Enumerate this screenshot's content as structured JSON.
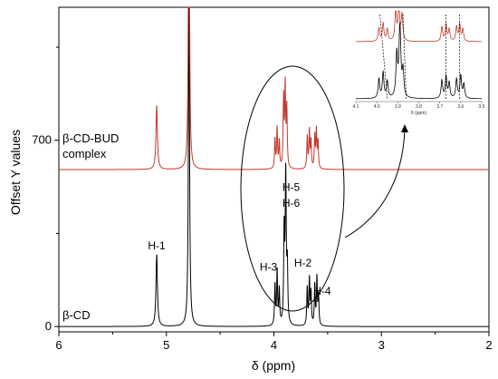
{
  "chart_data": {
    "type": "line",
    "xlabel": "δ (ppm)",
    "ylabel": "Offset Y values",
    "xlim": [
      6,
      2
    ],
    "ylim": [
      -20,
      1200
    ],
    "x_ticks": [
      "6",
      "5",
      "4",
      "3",
      "2"
    ],
    "y_ticks": [
      "0",
      "700"
    ],
    "grid": false,
    "series": [
      {
        "name": "β-CD",
        "offset": 0,
        "color": "#000000",
        "peaks": [
          {
            "x": 5.09,
            "y": 270,
            "w": 0.008
          },
          {
            "x": 4.79,
            "y": 1350,
            "w": 0.006
          },
          {
            "x": 3.99,
            "y": 150,
            "w": 0.005
          },
          {
            "x": 3.97,
            "y": 200,
            "w": 0.005
          },
          {
            "x": 3.95,
            "y": 130,
            "w": 0.005
          },
          {
            "x": 3.905,
            "y": 330,
            "w": 0.005
          },
          {
            "x": 3.89,
            "y": 560,
            "w": 0.006
          },
          {
            "x": 3.875,
            "y": 200,
            "w": 0.005
          },
          {
            "x": 3.69,
            "y": 140,
            "w": 0.005
          },
          {
            "x": 3.67,
            "y": 170,
            "w": 0.005
          },
          {
            "x": 3.655,
            "y": 120,
            "w": 0.005
          },
          {
            "x": 3.62,
            "y": 150,
            "w": 0.005
          },
          {
            "x": 3.6,
            "y": 175,
            "w": 0.005
          },
          {
            "x": 3.585,
            "y": 110,
            "w": 0.005
          }
        ]
      },
      {
        "name": "β-CD-BUD complex",
        "offset": 590,
        "color": "#c0392b",
        "peaks": [
          {
            "x": 5.09,
            "y": 240,
            "w": 0.008
          },
          {
            "x": 4.79,
            "y": 1300,
            "w": 0.006
          },
          {
            "x": 3.99,
            "y": 110,
            "w": 0.005
          },
          {
            "x": 3.97,
            "y": 150,
            "w": 0.005
          },
          {
            "x": 3.95,
            "y": 100,
            "w": 0.005
          },
          {
            "x": 3.91,
            "y": 260,
            "w": 0.005
          },
          {
            "x": 3.895,
            "y": 300,
            "w": 0.005
          },
          {
            "x": 3.88,
            "y": 220,
            "w": 0.005
          },
          {
            "x": 3.69,
            "y": 120,
            "w": 0.005
          },
          {
            "x": 3.67,
            "y": 140,
            "w": 0.005
          },
          {
            "x": 3.655,
            "y": 100,
            "w": 0.005
          },
          {
            "x": 3.62,
            "y": 120,
            "w": 0.005
          },
          {
            "x": 3.605,
            "y": 140,
            "w": 0.005
          },
          {
            "x": 3.59,
            "y": 100,
            "w": 0.005
          }
        ]
      }
    ],
    "annotations": [
      {
        "text": "H-1",
        "x": 5.09,
        "y": 290
      },
      {
        "text": "H-5",
        "x": 3.84,
        "y": 510
      },
      {
        "text": "H-6",
        "x": 3.84,
        "y": 450
      },
      {
        "text": "H-3",
        "x": 4.05,
        "y": 210
      },
      {
        "text": "H-2",
        "x": 3.73,
        "y": 225
      },
      {
        "text": "H-4",
        "x": 3.55,
        "y": 120
      }
    ],
    "inset": {
      "xlabel": "δ (ppm)",
      "xlim": [
        4.1,
        3.5
      ],
      "x_ticks": [
        "4.1",
        "4.0",
        "3.9",
        "3.8",
        "3.7",
        "3.6",
        "3.5"
      ],
      "dashed_pairs": [
        [
          3.985,
          3.95
        ],
        [
          3.875,
          3.86
        ],
        [
          3.67,
          3.67
        ],
        [
          3.605,
          3.605
        ]
      ]
    }
  }
}
